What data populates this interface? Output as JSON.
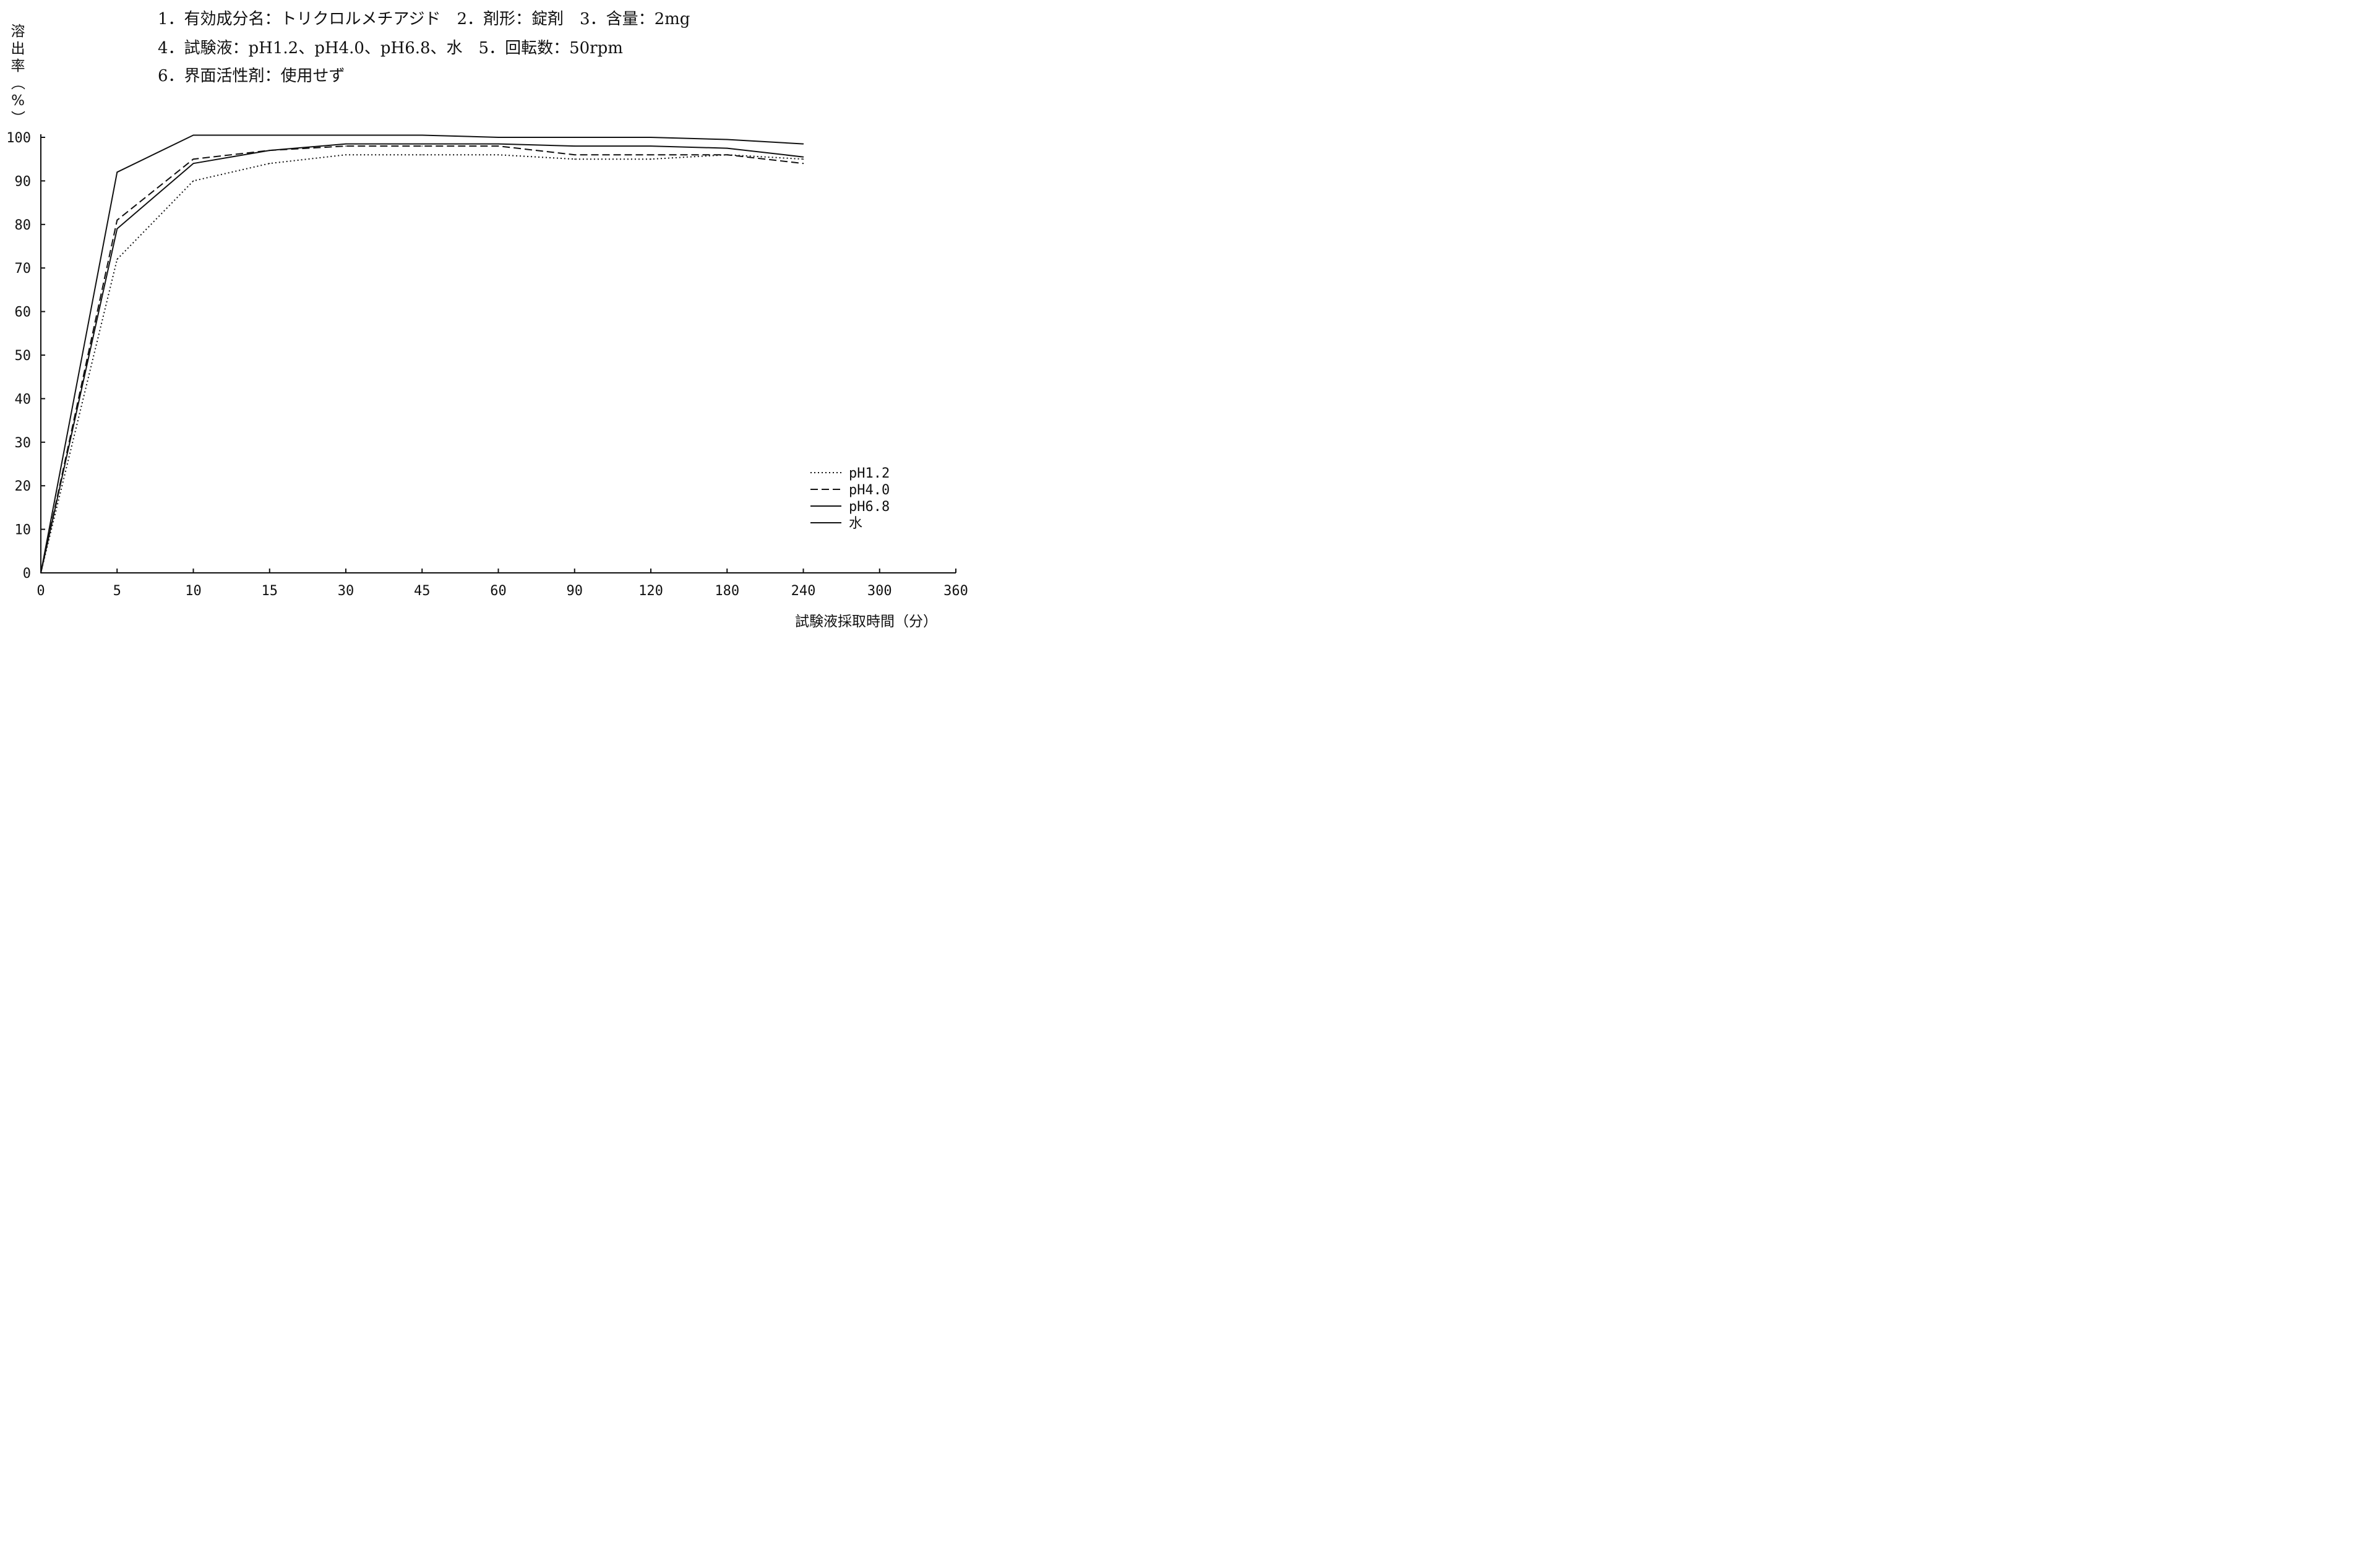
{
  "chart_data": {
    "type": "line",
    "header_lines": [
      "1．有効成分名：トリクロルメチアジド　2．剤形：錠剤　3．含量：2mg",
      "4．試験液：pH1.2、pH4.0、pH6.8、水　5．回転数：50rpm",
      "6．界面活性剤：使用せず"
    ],
    "ylabel_chars": [
      "溶",
      "出",
      "率",
      "（",
      "%",
      "）"
    ],
    "xlabel": "試験液採取時間（分）",
    "categories": [
      "0",
      "5",
      "10",
      "15",
      "30",
      "45",
      "60",
      "90",
      "120",
      "180",
      "240",
      "300",
      "360"
    ],
    "y_ticks": [
      "0",
      "10",
      "20",
      "30",
      "40",
      "50",
      "60",
      "70",
      "80",
      "90",
      "100"
    ],
    "ylim": [
      0,
      100
    ],
    "grid": false,
    "legend_position": "bottom-right",
    "series": [
      {
        "name": "pH1.2",
        "dash": "dotted",
        "x": [
          0,
          5,
          10,
          15,
          30,
          45,
          60,
          90,
          120,
          180,
          240
        ],
        "values": [
          0,
          72,
          90,
          94,
          96,
          96,
          96,
          95,
          95,
          96,
          95
        ]
      },
      {
        "name": "pH4.0",
        "dash": "dashed",
        "x": [
          0,
          5,
          10,
          15,
          30,
          45,
          60,
          90,
          120,
          180,
          240
        ],
        "values": [
          0,
          81,
          95,
          97,
          98,
          98,
          98,
          96,
          96,
          96,
          94
        ]
      },
      {
        "name": "pH6.8",
        "dash": "solid",
        "x": [
          0,
          5,
          10,
          15,
          30,
          45,
          60,
          90,
          120,
          180,
          240
        ],
        "values": [
          0,
          79,
          94,
          97,
          98.5,
          98.5,
          98.5,
          98,
          98,
          97.5,
          95.5
        ]
      },
      {
        "name": "水",
        "dash": "solid",
        "x": [
          0,
          5,
          10,
          15,
          30,
          45,
          60,
          90,
          120,
          180,
          240
        ],
        "values": [
          0,
          92,
          100.5,
          100.5,
          100.5,
          100.5,
          100,
          100,
          100,
          99.5,
          98.5
        ]
      }
    ]
  }
}
